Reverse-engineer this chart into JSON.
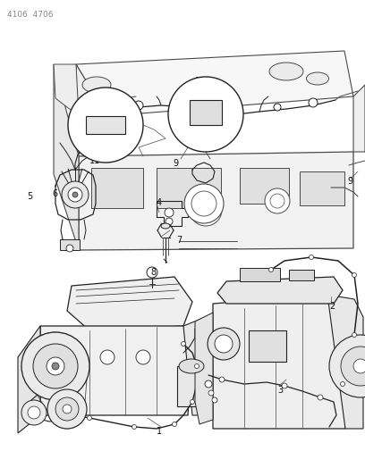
{
  "bg_color": "#ffffff",
  "lc": "#4a4a4a",
  "dc": "#222222",
  "header": "4106  4706",
  "fig_width": 4.08,
  "fig_height": 5.33,
  "dpi": 100
}
